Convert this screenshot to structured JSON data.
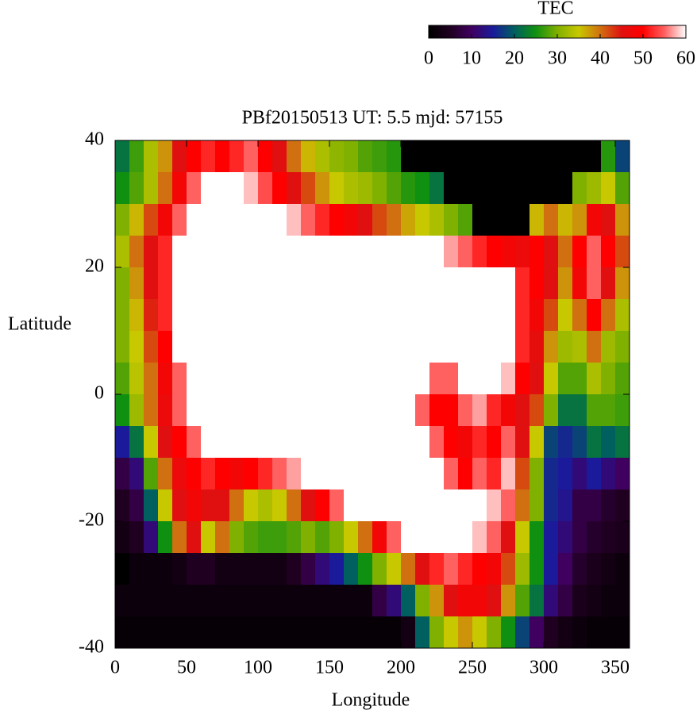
{
  "chart_data": {
    "type": "heatmap",
    "title": "PBf20150513  UT: 5.5  mjd: 57155",
    "x_label": "Longitude",
    "y_label": "Latitude",
    "colorbar_label": "TEC",
    "xlim": [
      0,
      360
    ],
    "ylim": [
      -40,
      40
    ],
    "xticks": [
      0,
      50,
      100,
      150,
      200,
      250,
      300,
      350
    ],
    "yticks": [
      -40,
      -20,
      0,
      20,
      40
    ],
    "zlim": [
      0,
      60
    ],
    "zticks": [
      0,
      10,
      20,
      30,
      40,
      50,
      60
    ],
    "colormap": [
      "#000000",
      "#200020",
      "#400060",
      "#1a1a9a",
      "#006060",
      "#109010",
      "#80b000",
      "#c8c800",
      "#d07010",
      "#e01010",
      "#ff0000",
      "#ff6060",
      "#ffffff"
    ],
    "x": [
      5,
      15,
      25,
      35,
      45,
      55,
      65,
      75,
      85,
      95,
      105,
      115,
      125,
      135,
      145,
      155,
      165,
      175,
      185,
      195,
      205,
      215,
      225,
      235,
      245,
      255,
      265,
      275,
      285,
      295,
      305,
      315,
      325,
      335,
      345,
      355
    ],
    "y": [
      37.5,
      32.5,
      27.5,
      22.5,
      17.5,
      12.5,
      7.5,
      2.5,
      -2.5,
      -7.5,
      -12.5,
      -17.5,
      -22.5,
      -27.5,
      -32.5,
      -37.5
    ],
    "z": [
      [
        22,
        27,
        33,
        38,
        45,
        50,
        52,
        50,
        52,
        55,
        50,
        45,
        40,
        36,
        33,
        31,
        30,
        28,
        27,
        26,
        0,
        0,
        0,
        0,
        0,
        0,
        0,
        0,
        0,
        0,
        0,
        0,
        0,
        0,
        26,
        18
      ],
      [
        25,
        28,
        33,
        40,
        48,
        55,
        60,
        60,
        60,
        58,
        54,
        50,
        45,
        42,
        38,
        35,
        33,
        32,
        30,
        28,
        26,
        25,
        22,
        0,
        0,
        0,
        0,
        0,
        0,
        0,
        0,
        0,
        30,
        32,
        35,
        28
      ],
      [
        30,
        36,
        42,
        48,
        55,
        60,
        60,
        60,
        60,
        60,
        60,
        60,
        58,
        55,
        52,
        50,
        48,
        45,
        42,
        40,
        37,
        35,
        33,
        30,
        28,
        0,
        0,
        0,
        0,
        36,
        40,
        36,
        38,
        48,
        45,
        38
      ],
      [
        33,
        40,
        45,
        52,
        60,
        60,
        60,
        60,
        60,
        60,
        60,
        60,
        60,
        60,
        60,
        60,
        60,
        60,
        60,
        60,
        60,
        60,
        60,
        57,
        55,
        52,
        50,
        48,
        47,
        50,
        45,
        40,
        50,
        55,
        50,
        42
      ],
      [
        30,
        38,
        45,
        52,
        60,
        60,
        60,
        60,
        60,
        60,
        60,
        60,
        60,
        60,
        60,
        60,
        60,
        60,
        60,
        60,
        60,
        60,
        60,
        60,
        60,
        60,
        60,
        60,
        52,
        50,
        45,
        38,
        48,
        55,
        45,
        38
      ],
      [
        30,
        36,
        44,
        52,
        60,
        60,
        60,
        60,
        60,
        60,
        60,
        60,
        60,
        60,
        60,
        60,
        60,
        60,
        60,
        60,
        60,
        60,
        60,
        60,
        60,
        60,
        60,
        60,
        52,
        48,
        42,
        35,
        40,
        50,
        40,
        33
      ],
      [
        30,
        35,
        42,
        50,
        60,
        60,
        60,
        60,
        60,
        60,
        60,
        60,
        60,
        60,
        60,
        60,
        60,
        60,
        60,
        60,
        60,
        60,
        60,
        60,
        60,
        60,
        60,
        60,
        52,
        46,
        38,
        32,
        33,
        40,
        32,
        30
      ],
      [
        28,
        34,
        40,
        48,
        55,
        60,
        60,
        60,
        60,
        60,
        60,
        60,
        60,
        60,
        60,
        60,
        60,
        60,
        60,
        60,
        60,
        60,
        55,
        55,
        60,
        60,
        60,
        58,
        50,
        45,
        35,
        28,
        28,
        33,
        30,
        28
      ],
      [
        25,
        32,
        40,
        47,
        55,
        60,
        60,
        60,
        60,
        60,
        60,
        60,
        60,
        60,
        60,
        60,
        60,
        60,
        60,
        60,
        60,
        55,
        50,
        50,
        55,
        57,
        52,
        48,
        45,
        42,
        30,
        22,
        22,
        28,
        28,
        27
      ],
      [
        15,
        22,
        35,
        45,
        50,
        55,
        60,
        60,
        60,
        60,
        60,
        60,
        60,
        60,
        60,
        60,
        60,
        60,
        60,
        60,
        60,
        60,
        55,
        50,
        48,
        52,
        50,
        55,
        45,
        35,
        18,
        16,
        18,
        22,
        20,
        22
      ],
      [
        8,
        12,
        28,
        40,
        47,
        50,
        52,
        50,
        48,
        50,
        52,
        55,
        57,
        60,
        60,
        60,
        60,
        60,
        60,
        60,
        60,
        60,
        60,
        55,
        50,
        55,
        52,
        58,
        42,
        30,
        16,
        15,
        12,
        15,
        12,
        10
      ],
      [
        5,
        8,
        20,
        35,
        45,
        48,
        45,
        45,
        40,
        35,
        33,
        35,
        40,
        45,
        50,
        55,
        60,
        60,
        60,
        60,
        60,
        60,
        60,
        60,
        60,
        60,
        58,
        55,
        40,
        30,
        16,
        14,
        8,
        8,
        6,
        5
      ],
      [
        3,
        5,
        12,
        25,
        40,
        45,
        35,
        40,
        30,
        28,
        27,
        27,
        28,
        30,
        28,
        30,
        35,
        40,
        48,
        55,
        60,
        60,
        60,
        60,
        60,
        58,
        55,
        45,
        35,
        25,
        15,
        12,
        8,
        6,
        5,
        4
      ],
      [
        0,
        2,
        2,
        2,
        3,
        5,
        5,
        3,
        3,
        3,
        3,
        3,
        5,
        8,
        12,
        15,
        20,
        25,
        30,
        35,
        40,
        45,
        52,
        55,
        52,
        50,
        48,
        42,
        32,
        25,
        15,
        10,
        6,
        4,
        3,
        2
      ],
      [
        2,
        2,
        2,
        2,
        2,
        2,
        2,
        2,
        2,
        2,
        2,
        2,
        2,
        2,
        2,
        2,
        2,
        2,
        8,
        12,
        20,
        30,
        38,
        45,
        48,
        48,
        45,
        38,
        28,
        22,
        12,
        8,
        4,
        3,
        2,
        2
      ],
      [
        1,
        1,
        1,
        1,
        1,
        1,
        1,
        1,
        1,
        1,
        1,
        1,
        1,
        1,
        1,
        1,
        1,
        1,
        1,
        1,
        3,
        20,
        30,
        35,
        38,
        35,
        30,
        25,
        18,
        10,
        5,
        3,
        2,
        1,
        1,
        1
      ]
    ]
  }
}
